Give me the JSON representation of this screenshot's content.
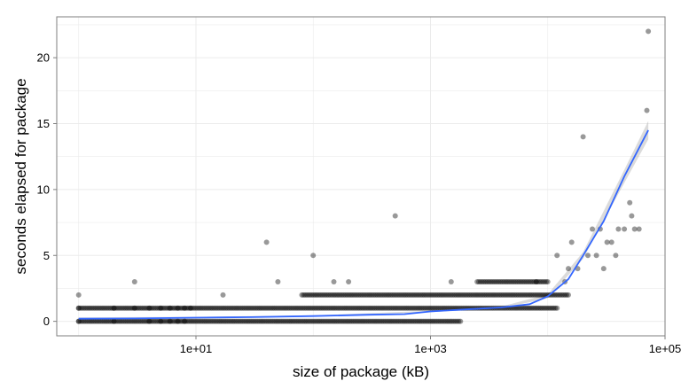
{
  "chart_data": {
    "type": "scatter",
    "title": "",
    "xlabel": "size of package (kB)",
    "ylabel": "seconds elapsed for package",
    "x_scale": "log10",
    "xlim": [
      0.65,
      100000
    ],
    "ylim": [
      -1.1,
      23.1
    ],
    "x_ticks": [
      {
        "value": 10,
        "label": "1e+01"
      },
      {
        "value": 1000,
        "label": "1e+03"
      },
      {
        "value": 100000,
        "label": "1e+05"
      }
    ],
    "y_ticks": [
      {
        "value": 0,
        "label": "0"
      },
      {
        "value": 5,
        "label": "5"
      },
      {
        "value": 10,
        "label": "10"
      },
      {
        "value": 15,
        "label": "15"
      },
      {
        "value": 20,
        "label": "20"
      }
    ],
    "grid": true,
    "colors": {
      "points": "#000000",
      "smooth_line": "#3366FF",
      "confidence_band": "#999999",
      "grid": "#ebebeb",
      "panel_border": "#7f7f7f"
    },
    "points": [
      [
        1,
        0
      ],
      [
        1,
        1
      ],
      [
        1,
        2
      ],
      [
        2,
        0
      ],
      [
        2,
        1
      ],
      [
        3,
        1
      ],
      [
        3,
        3
      ],
      [
        4,
        0
      ],
      [
        4,
        1
      ],
      [
        5,
        0
      ],
      [
        5,
        1
      ],
      [
        6,
        0
      ],
      [
        6,
        1
      ],
      [
        7,
        0
      ],
      [
        7,
        1
      ],
      [
        8,
        0
      ],
      [
        8,
        1
      ],
      [
        9,
        1
      ],
      [
        17,
        2
      ],
      [
        40,
        6
      ],
      [
        50,
        3
      ],
      [
        100,
        5
      ],
      [
        150,
        3
      ],
      [
        200,
        3
      ],
      [
        500,
        8
      ],
      [
        1500,
        3
      ],
      [
        8000,
        3
      ],
      [
        12000,
        5
      ],
      [
        14000,
        3
      ],
      [
        15000,
        4
      ],
      [
        16000,
        6
      ],
      [
        18000,
        4
      ],
      [
        20000,
        14
      ],
      [
        22000,
        5
      ],
      [
        24000,
        7
      ],
      [
        26000,
        5
      ],
      [
        28000,
        7
      ],
      [
        30000,
        4
      ],
      [
        32000,
        6
      ],
      [
        35000,
        6
      ],
      [
        38000,
        5
      ],
      [
        40000,
        7
      ],
      [
        45000,
        7
      ],
      [
        50000,
        9
      ],
      [
        52000,
        8
      ],
      [
        55000,
        7
      ],
      [
        60000,
        7
      ],
      [
        70000,
        16
      ],
      [
        72000,
        22
      ]
    ],
    "dense_bands": [
      {
        "y": 0,
        "x_min": 1,
        "x_max": 1800
      },
      {
        "y": 1,
        "x_min": 1,
        "x_max": 12000
      },
      {
        "y": 2,
        "x_min": 80,
        "x_max": 15000
      },
      {
        "y": 3,
        "x_min": 2500,
        "x_max": 10000
      }
    ],
    "smooth_line": [
      [
        1,
        0.2
      ],
      [
        3,
        0.22
      ],
      [
        10,
        0.28
      ],
      [
        30,
        0.32
      ],
      [
        100,
        0.4
      ],
      [
        300,
        0.5
      ],
      [
        600,
        0.55
      ],
      [
        1000,
        0.75
      ],
      [
        2000,
        0.9
      ],
      [
        4000,
        1.05
      ],
      [
        7000,
        1.3
      ],
      [
        10000,
        1.9
      ],
      [
        15000,
        3.2
      ],
      [
        20000,
        5
      ],
      [
        30000,
        7.6
      ],
      [
        45000,
        11
      ],
      [
        72000,
        14.5
      ]
    ],
    "confidence_band": [
      {
        "x": 1,
        "lo": 0.1,
        "hi": 0.3
      },
      {
        "x": 10,
        "lo": 0.22,
        "hi": 0.34
      },
      {
        "x": 100,
        "lo": 0.35,
        "hi": 0.45
      },
      {
        "x": 1000,
        "lo": 0.7,
        "hi": 0.8
      },
      {
        "x": 4000,
        "lo": 0.98,
        "hi": 1.12
      },
      {
        "x": 10000,
        "lo": 1.75,
        "hi": 2.05
      },
      {
        "x": 20000,
        "lo": 4.75,
        "hi": 5.25
      },
      {
        "x": 45000,
        "lo": 10.5,
        "hi": 11.5
      },
      {
        "x": 72000,
        "lo": 13.8,
        "hi": 15.2
      }
    ]
  }
}
